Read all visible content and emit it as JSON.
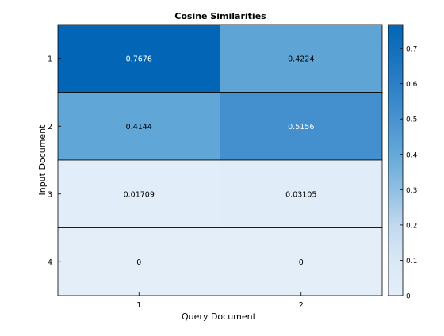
{
  "chart_data": {
    "type": "heatmap",
    "title": "Cosine Similarities",
    "xlabel": "Query Document",
    "ylabel": "Input Document",
    "x_categories": [
      "1",
      "2"
    ],
    "y_categories": [
      "1",
      "2",
      "3",
      "4"
    ],
    "values": [
      [
        0.7676,
        0.4224
      ],
      [
        0.4144,
        0.5156
      ],
      [
        0.01709,
        0.03105
      ],
      [
        0,
        0
      ]
    ],
    "value_labels": [
      [
        "0.7676",
        "0.4224"
      ],
      [
        "0.4144",
        "0.5156"
      ],
      [
        "0.01709",
        "0.03105"
      ],
      [
        "0",
        "0"
      ]
    ],
    "colorbar": {
      "min": 0,
      "max": 0.7676,
      "ticks": [
        0,
        0.1,
        0.2,
        0.3,
        0.4,
        0.5,
        0.6,
        0.7
      ],
      "tick_labels": [
        "0",
        "0.1",
        "0.2",
        "0.3",
        "0.4",
        "0.5",
        "0.6",
        "0.7"
      ],
      "levels": [
        {
          "value": 0,
          "color": "#e3eef9"
        },
        {
          "value": 0.1,
          "color": "#dae8f6"
        },
        {
          "value": 0.2,
          "color": "#c2d8ee"
        },
        {
          "value": 0.3,
          "color": "#8fbfe2"
        },
        {
          "value": 0.4,
          "color": "#64a9d7"
        },
        {
          "value": 0.5,
          "color": "#4892d0"
        },
        {
          "value": 0.6,
          "color": "#2c7fc6"
        },
        {
          "value": 0.7676,
          "color": "#0265b5"
        }
      ]
    },
    "grid": true,
    "colors": {
      "light_text": "#ffffff",
      "dark_text": "#000000",
      "cell_border": "#000000"
    }
  }
}
